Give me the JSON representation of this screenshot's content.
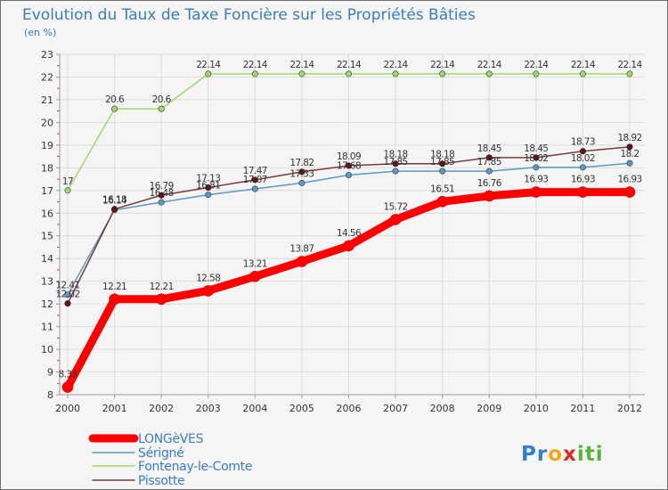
{
  "chart_data": {
    "type": "line",
    "title": "Evolution du Taux de Taxe Foncière sur les Propriétés Bâties",
    "ylabel": "(en %)",
    "xlabel": "",
    "ylim": [
      8,
      23
    ],
    "yticks": [
      "8",
      "9",
      "10",
      "11",
      "12",
      "13",
      "14",
      "15",
      "16",
      "17",
      "18",
      "19",
      "20",
      "21",
      "22",
      "23"
    ],
    "categories": [
      "2000",
      "2001",
      "2002",
      "2003",
      "2004",
      "2005",
      "2006",
      "2007",
      "2008",
      "2009",
      "2010",
      "2011",
      "2012"
    ],
    "series": [
      {
        "name": "LONGèVES",
        "color": "#ff0000",
        "values": [
          8.33,
          12.21,
          12.21,
          12.58,
          13.21,
          13.87,
          14.56,
          15.72,
          16.51,
          16.76,
          16.93,
          16.93,
          16.93
        ],
        "labels": [
          "8.33",
          "12.21",
          "12.21",
          "12.58",
          "13.21",
          "13.87",
          "14.56",
          "15.72",
          "16.51",
          "16.76",
          "16.93",
          "16.93",
          "16.93"
        ]
      },
      {
        "name": "Sérigné",
        "color": "#5a98c8",
        "values": [
          12.41,
          16.14,
          16.48,
          16.81,
          17.07,
          17.33,
          17.68,
          17.85,
          17.85,
          17.85,
          18.02,
          18.02,
          18.2
        ],
        "labels": [
          "12.41",
          "16.14",
          "16.48",
          "16.81",
          "17.07",
          "17.33",
          "17.68",
          "17.85",
          "17.85",
          "17.85",
          "18.02",
          "18.02",
          "18.2"
        ]
      },
      {
        "name": "Fontenay-le-Comte",
        "color": "#99dd66",
        "values": [
          17,
          20.6,
          20.6,
          22.14,
          22.14,
          22.14,
          22.14,
          22.14,
          22.14,
          22.14,
          22.14,
          22.14,
          22.14
        ],
        "labels": [
          "17",
          "20.6",
          "20.6",
          "22.14",
          "22.14",
          "22.14",
          "22.14",
          "22.14",
          "22.14",
          "22.14",
          "22.14",
          "22.14",
          "22.14"
        ]
      },
      {
        "name": "Pissotte",
        "color": "#7a3a3a",
        "values": [
          12.02,
          16.18,
          16.79,
          17.13,
          17.47,
          17.82,
          18.09,
          18.18,
          18.18,
          18.45,
          18.45,
          18.73,
          18.92
        ],
        "labels": [
          "12.02",
          "16.18",
          "16.79",
          "17.13",
          "17.47",
          "17.82",
          "18.09",
          "18.18",
          "18.18",
          "18.45",
          "18.45",
          "18.73",
          "18.92"
        ]
      }
    ],
    "legend": "bottom-left"
  },
  "logo": {
    "text": "Proxiti"
  }
}
